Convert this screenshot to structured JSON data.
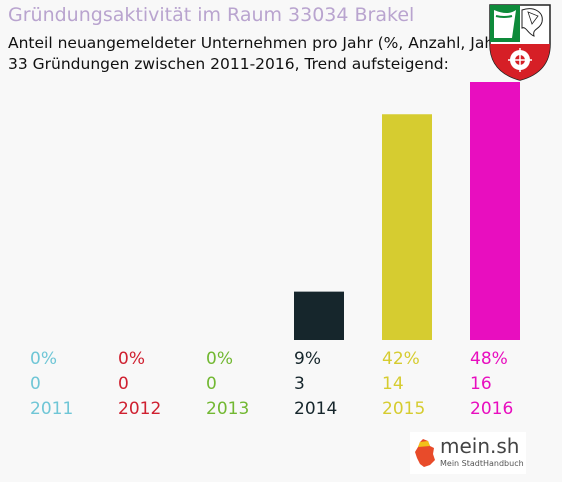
{
  "title": "Gründungsaktivität im Raum 33034 Brakel",
  "subtitle_line1": "Anteil neuangemeldeter Unternehmen pro Jahr (%, Anzahl, Jahr)",
  "subtitle_line2": "33 Gründungen zwischen 2011-2016, Trend aufsteigend:",
  "brand": {
    "name": "mein.sh",
    "tagline": "Mein StadtHandbuch"
  },
  "crest_icon": "nrw-coat-of-arms",
  "chart_data": {
    "type": "bar",
    "title": "Gründungsaktivität im Raum 33034 Brakel",
    "categories": [
      "2011",
      "2012",
      "2013",
      "2014",
      "2015",
      "2016"
    ],
    "series": [
      {
        "values": [
          0,
          0,
          0,
          9,
          42,
          48
        ],
        "value_labels": [
          "0%",
          "0%",
          "0%",
          "9%",
          "42%",
          "48%"
        ]
      },
      {
        "values": [
          0,
          0,
          0,
          3,
          14,
          16
        ]
      }
    ],
    "colors": [
      "#6fc6d6",
      "#cf2030",
      "#72b832",
      "#16262c",
      "#d6cc30",
      "#e80ebf"
    ],
    "ylim": [
      0,
      48
    ],
    "grid": false,
    "legend": "none"
  }
}
